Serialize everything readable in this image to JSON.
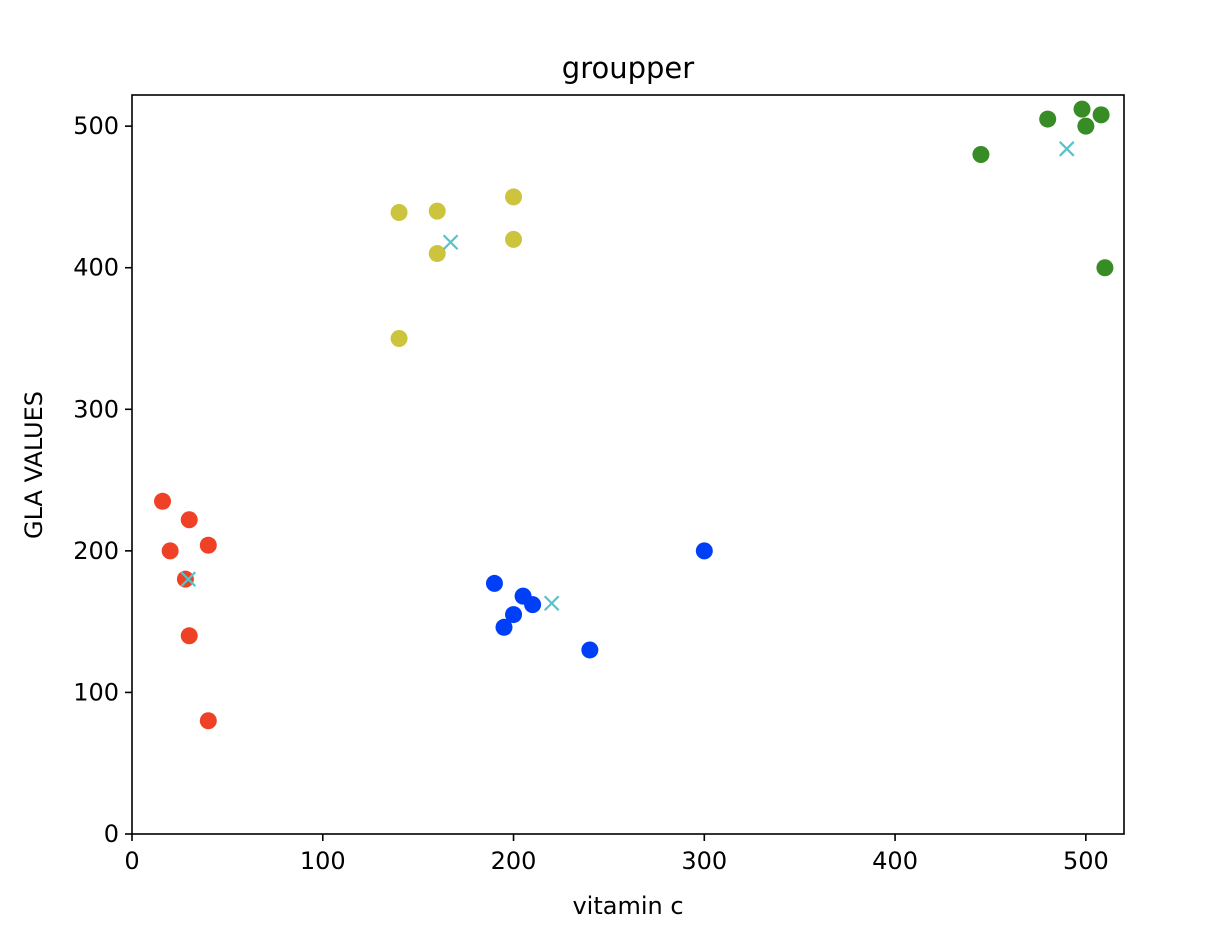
{
  "chart_data": {
    "type": "scatter",
    "title": "groupper",
    "xlabel": "vitamin c",
    "ylabel": "GLA VALUES",
    "xlim": [
      0,
      520
    ],
    "ylim": [
      0,
      522
    ],
    "xticks": [
      0,
      100,
      200,
      300,
      400,
      500
    ],
    "yticks": [
      0,
      100,
      200,
      300,
      400,
      500
    ],
    "grid": false,
    "legend": "none",
    "series": [
      {
        "color": "#ee4125",
        "marker": "circle",
        "points": [
          [
            16,
            235
          ],
          [
            20,
            200
          ],
          [
            30,
            222
          ],
          [
            40,
            204
          ],
          [
            28,
            180
          ],
          [
            30,
            140
          ],
          [
            40,
            80
          ]
        ]
      },
      {
        "color": "#003ff8",
        "marker": "circle",
        "points": [
          [
            190,
            177
          ],
          [
            205,
            168
          ],
          [
            200,
            155
          ],
          [
            210,
            162
          ],
          [
            195,
            146
          ],
          [
            240,
            130
          ],
          [
            300,
            200
          ]
        ]
      },
      {
        "color": "#cdc43e",
        "marker": "circle",
        "points": [
          [
            140,
            439
          ],
          [
            160,
            440
          ],
          [
            200,
            450
          ],
          [
            200,
            420
          ],
          [
            160,
            410
          ],
          [
            140,
            350
          ]
        ]
      },
      {
        "color": "#388c25",
        "marker": "circle",
        "points": [
          [
            445,
            480
          ],
          [
            480,
            505
          ],
          [
            498,
            512
          ],
          [
            508,
            508
          ],
          [
            500,
            500
          ],
          [
            510,
            400
          ]
        ]
      },
      {
        "color": "#55c4c8",
        "marker": "x",
        "points": [
          [
            29.5,
            180
          ],
          [
            167,
            418
          ],
          [
            220,
            163
          ],
          [
            490,
            484
          ]
        ]
      }
    ]
  }
}
